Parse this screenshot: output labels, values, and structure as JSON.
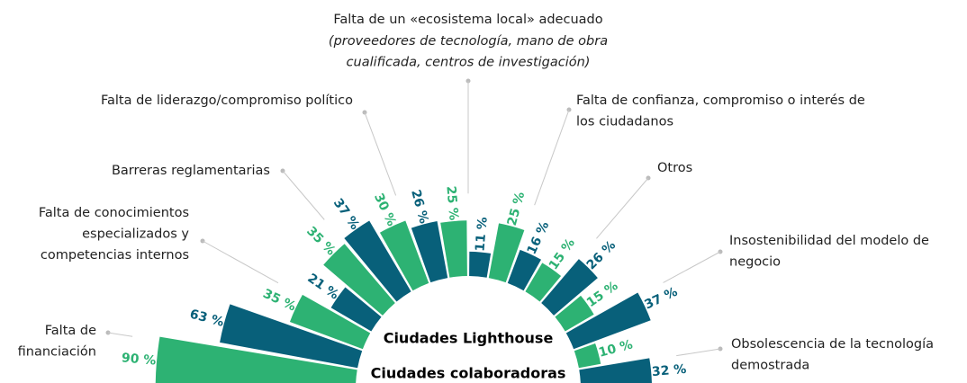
{
  "chart_data": {
    "type": "radial_bar",
    "categories": [
      "Falta de\nfinanciación",
      "Falta de conocimientos\nespecializados y\ncompetencias internos",
      "Barreras reglamentarias",
      "Falta de liderazgo/compromiso político",
      "Falta de un «ecosistema local» adecuado",
      "Falta de confianza, compromiso o interés de\nlos ciudadanos",
      "Otros",
      "Insostenibilidad del modelo de\nnegocio",
      "Obsolescencia de la tecnología\ndemostrada"
    ],
    "annotations": [
      {
        "category": 4,
        "text": "(proveedores de tecnología, mano de obra\ncualificada, centros de investigación)"
      }
    ],
    "series": [
      {
        "name": "Ciudades Lighthouse",
        "color": "#08607a",
        "values": [
          63,
          21,
          37,
          26,
          11,
          16,
          26,
          37,
          32
        ],
        "value_labels": [
          "63 %",
          "21 %",
          "37 %",
          "26 %",
          "11 %",
          "16 %",
          "26 %",
          "37 %",
          "32 %"
        ]
      },
      {
        "name": "Ciudades colaboradoras",
        "color": "#2db273",
        "values": [
          90,
          35,
          35,
          30,
          25,
          25,
          15,
          15,
          10
        ],
        "value_labels": [
          "90 %",
          "35 %",
          "35 %",
          "30 %",
          "25 %",
          "25 %",
          "15 %",
          "15 %",
          "10 %"
        ]
      }
    ]
  }
}
